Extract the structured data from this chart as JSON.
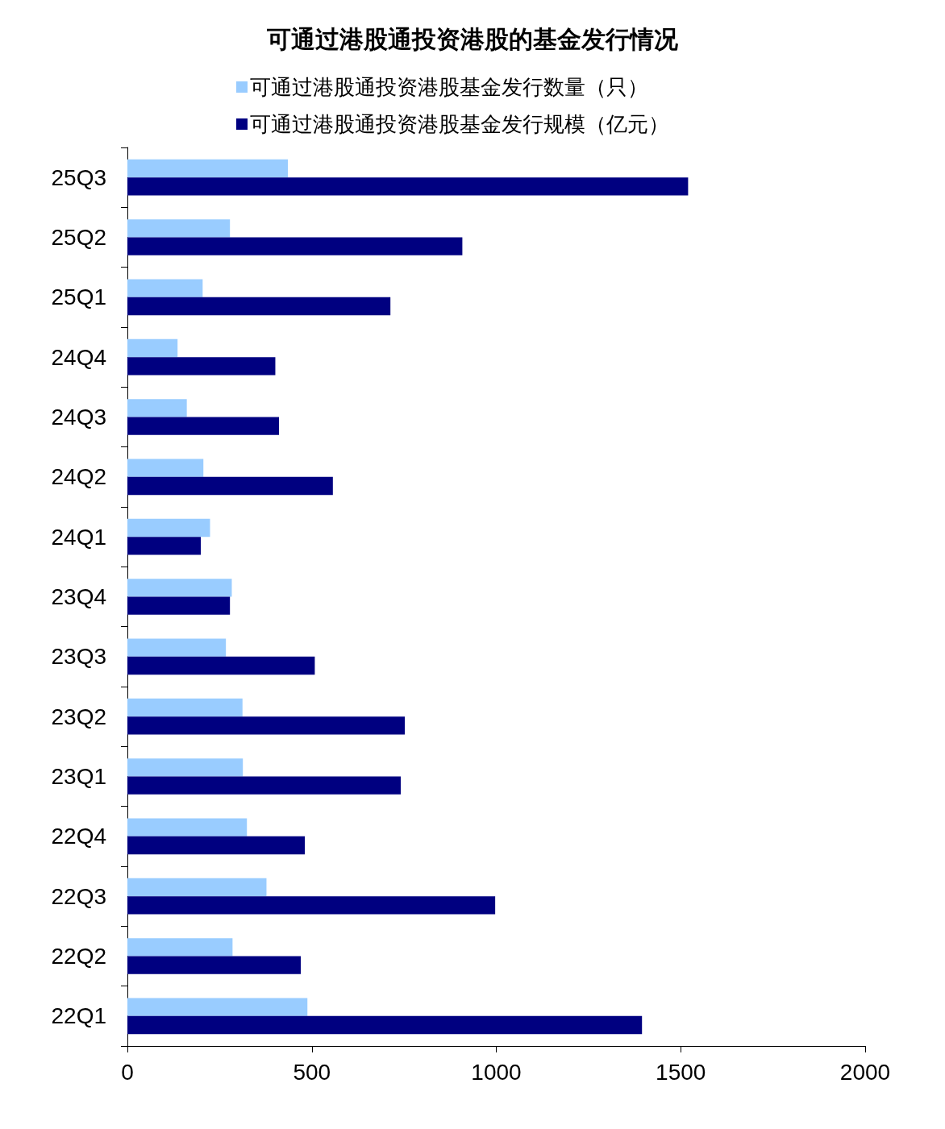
{
  "chart_data": {
    "type": "bar",
    "orientation": "horizontal",
    "title": "可通过港股通投资港股的基金发行情况",
    "categories": [
      "25Q3",
      "25Q2",
      "25Q1",
      "24Q4",
      "24Q3",
      "24Q2",
      "24Q1",
      "23Q4",
      "23Q3",
      "23Q2",
      "23Q1",
      "22Q4",
      "22Q3",
      "22Q2",
      "22Q1"
    ],
    "series": [
      {
        "name": "可通过港股通投资港股基金发行数量（只）",
        "color": "#99ccff",
        "values": [
          435,
          278,
          204,
          136,
          161,
          206,
          224,
          283,
          267,
          312,
          313,
          324,
          377,
          285,
          488
        ]
      },
      {
        "name": "可通过港股通投资港股基金发行规模（亿元）",
        "color": "#000080",
        "values": [
          1520,
          908,
          713,
          401,
          411,
          557,
          199,
          278,
          508,
          752,
          741,
          481,
          997,
          470,
          1395
        ]
      }
    ],
    "xlim": [
      0,
      2000
    ],
    "xticks": [
      0,
      500,
      1000,
      1500,
      2000
    ],
    "legend": "top"
  }
}
